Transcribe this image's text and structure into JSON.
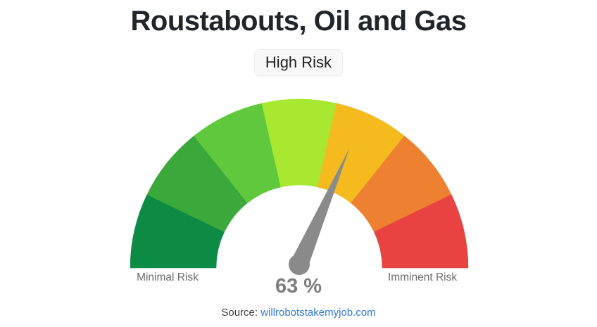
{
  "page": {
    "title": "Roustabouts, Oil and Gas",
    "source_prefix": "Source:",
    "source_link": "willrobotstakemyjob.com"
  },
  "chart_data": {
    "type": "gauge",
    "title": "Roustabouts, Oil and Gas",
    "risk_label": "High Risk",
    "value_percent": 63,
    "value_display": "63 %",
    "min_label": "Minimal Risk",
    "max_label": "Imminent Risk",
    "range": [
      0,
      100
    ],
    "segments": [
      {
        "from": 0,
        "to": 14.3,
        "color": "#0d8b45"
      },
      {
        "from": 14.3,
        "to": 28.6,
        "color": "#3aa83b"
      },
      {
        "from": 28.6,
        "to": 42.9,
        "color": "#5fc83d"
      },
      {
        "from": 42.9,
        "to": 57.1,
        "color": "#a9e831"
      },
      {
        "from": 57.1,
        "to": 71.4,
        "color": "#f4ba1e"
      },
      {
        "from": 71.4,
        "to": 85.7,
        "color": "#ee8031"
      },
      {
        "from": 85.7,
        "to": 100,
        "color": "#e84340"
      }
    ],
    "needle_color": "#8a8a8a",
    "value_color": "#7d7d7d",
    "legend_position": "none",
    "grid": false
  }
}
